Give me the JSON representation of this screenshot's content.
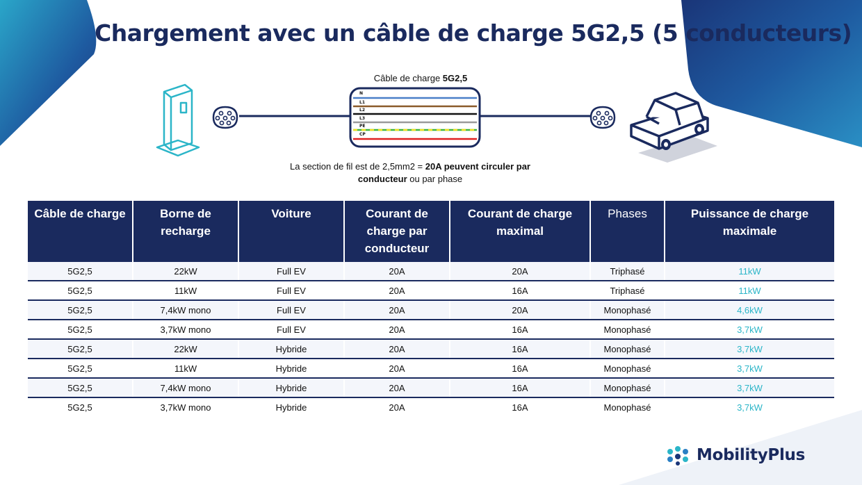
{
  "title": "Chargement avec un câble de charge 5G2,5 (5 conducteurs)",
  "cable_caption": {
    "prefix": "Câble de charge ",
    "bold": "5G2,5"
  },
  "wires": [
    "N",
    "L1",
    "L2",
    "L3",
    "PE",
    "CP"
  ],
  "colors": {
    "navy": "#1a2a5e",
    "accent": "#2bb5c8"
  },
  "note": {
    "prefix": "La section de fil est de 2,5mm2 = ",
    "bold1": "20A peuvent circuler par",
    "bold2": "conducteur",
    "suffix": " ou par phase"
  },
  "table": {
    "headers": [
      "Câble de charge",
      "Borne de recharge",
      "Voiture",
      "Courant de charge par conducteur",
      "Courant de charge maximal",
      "Phases",
      "Puissance de charge maximale"
    ],
    "rows": [
      [
        "5G2,5",
        "22kW",
        "Full EV",
        "20A",
        "20A",
        "Triphasé",
        "11kW"
      ],
      [
        "5G2,5",
        "11kW",
        "Full EV",
        "20A",
        "16A",
        "Triphasé",
        "11kW"
      ],
      [
        "5G2,5",
        "7,4kW mono",
        "Full EV",
        "20A",
        "20A",
        "Monophasé",
        "4,6kW"
      ],
      [
        "5G2,5",
        "3,7kW mono",
        "Full EV",
        "20A",
        "16A",
        "Monophasé",
        "3,7kW"
      ],
      [
        "5G2,5",
        "22kW",
        "Hybride",
        "20A",
        "16A",
        "Monophasé",
        "3,7kW"
      ],
      [
        "5G2,5",
        "11kW",
        "Hybride",
        "20A",
        "16A",
        "Monophasé",
        "3,7kW"
      ],
      [
        "5G2,5",
        "7,4kW mono",
        "Hybride",
        "20A",
        "16A",
        "Monophasé",
        "3,7kW"
      ],
      [
        "5G2,5",
        "3,7kW mono",
        "Hybride",
        "20A",
        "16A",
        "Monophasé",
        "3,7kW"
      ]
    ]
  },
  "logo": {
    "text": "MobilityPlus"
  }
}
